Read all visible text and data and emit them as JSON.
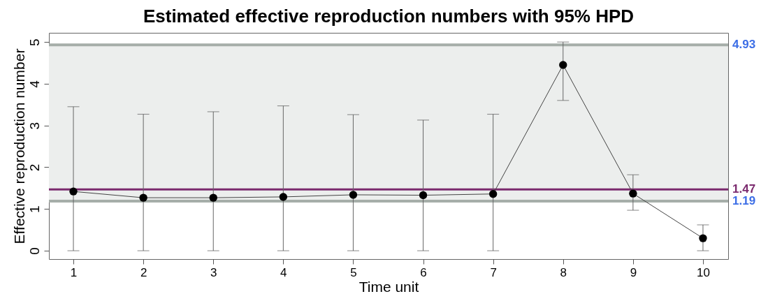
{
  "chart_data": {
    "type": "line",
    "title": "Estimated effective reproduction numbers with 95% HPD",
    "xlabel": "Time unit",
    "ylabel": "Effective reproduction number",
    "x": [
      1,
      2,
      3,
      4,
      5,
      6,
      7,
      8,
      9,
      10
    ],
    "series": [
      {
        "color": "#000000",
        "values": [
          1.42,
          1.27,
          1.27,
          1.29,
          1.34,
          1.33,
          1.36,
          4.45,
          1.37,
          0.3
        ],
        "errors": [
          [
            0,
            3.45
          ],
          [
            0,
            3.27
          ],
          [
            0,
            3.33
          ],
          [
            0,
            3.47
          ],
          [
            0,
            3.26
          ],
          [
            0,
            3.13
          ],
          [
            0,
            3.27
          ],
          [
            3.6,
            5.0
          ],
          [
            0.97,
            1.82
          ],
          [
            0,
            0.62
          ]
        ]
      }
    ],
    "marker": "circle",
    "line_style": "solid",
    "xlim": [
      0.65,
      10.36
    ],
    "xticks": [
      1,
      2,
      3,
      4,
      5,
      6,
      7,
      8,
      9,
      10
    ],
    "ylim": [
      -0.2,
      5.22
    ],
    "yticks": [
      0,
      1,
      2,
      3,
      4,
      5
    ],
    "bands": [
      {
        "axis": "y",
        "from": 1.19,
        "to": 4.93,
        "color": "#eceeed"
      }
    ],
    "ref_lines": [
      {
        "axis": "y",
        "value": 4.93,
        "label": "4.93",
        "color": "#a6aea9"
      },
      {
        "axis": "y",
        "value": 1.19,
        "label": "1.19",
        "color": "#a6aea9"
      },
      {
        "axis": "y",
        "value": 1.47,
        "label": "1.47",
        "color": "#7b2a6e"
      }
    ],
    "grid": false
  }
}
